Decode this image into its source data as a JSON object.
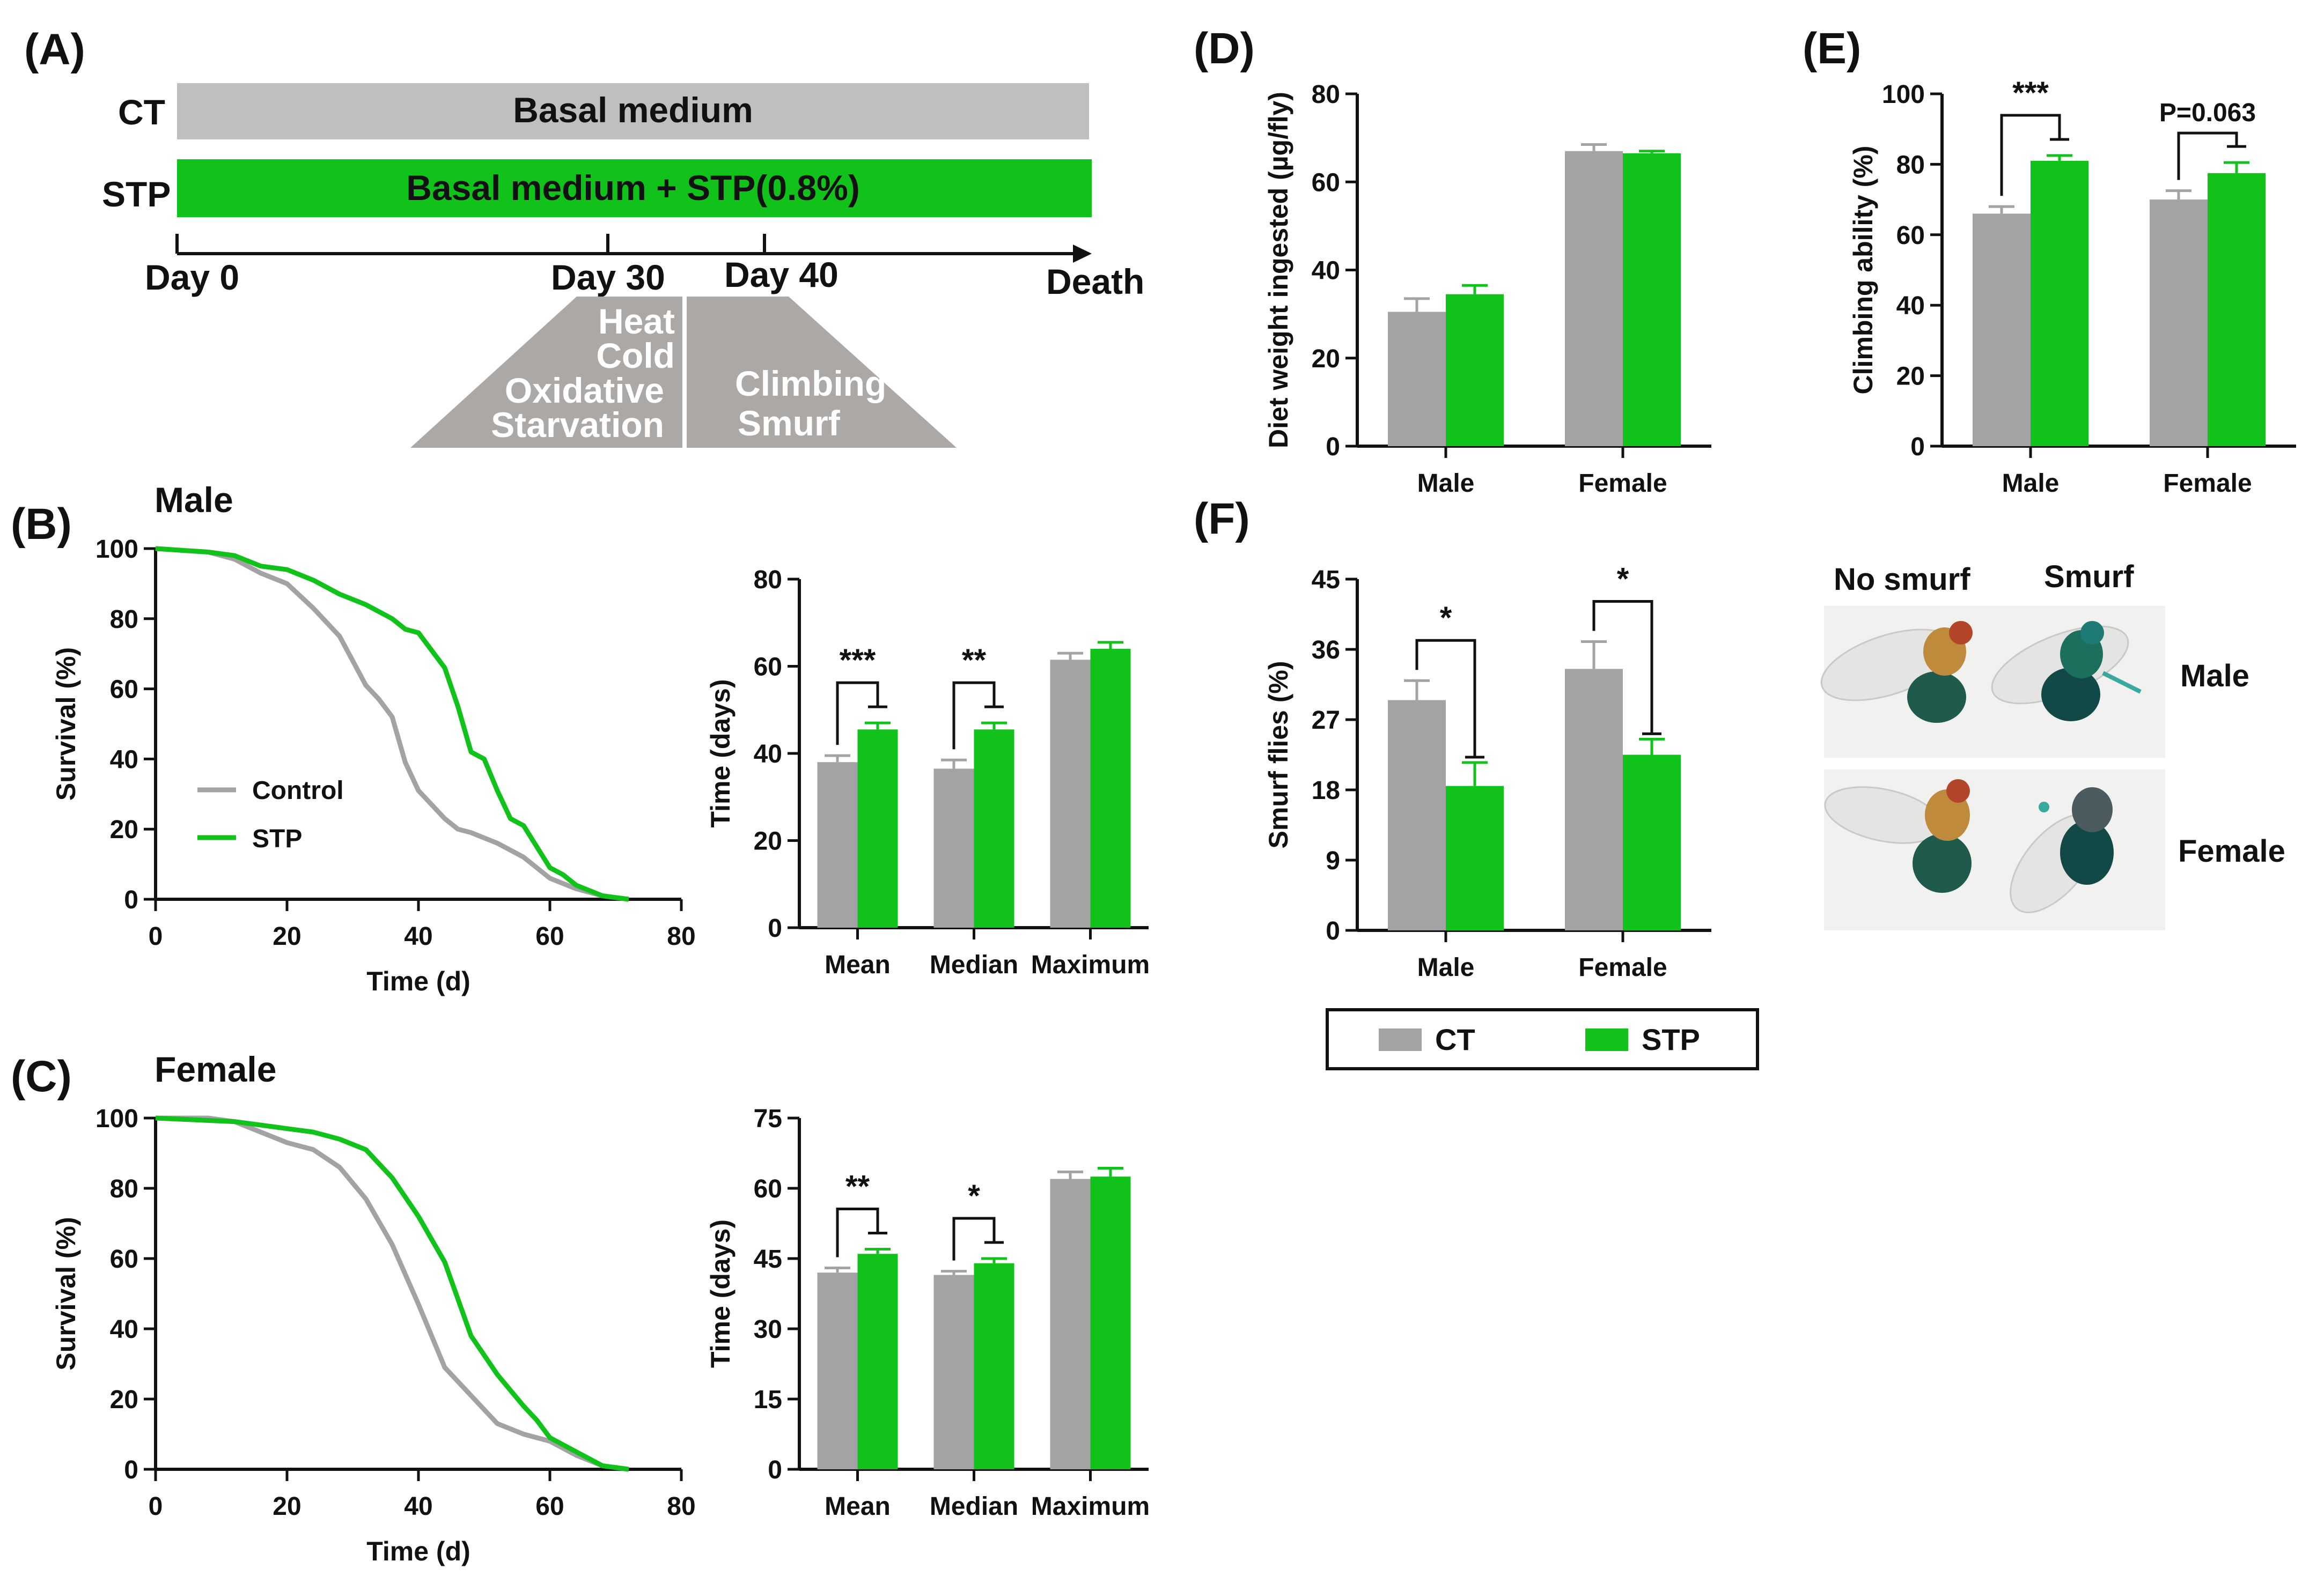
{
  "colors": {
    "ct": "#a3a3a6",
    "stp": "#10c21a",
    "ink": "#111111",
    "bar_grey": "#bfbfbf",
    "trap": "#aca8a5"
  },
  "panel_labels": {
    "A": "(A)",
    "B": "(B)",
    "C": "(C)",
    "D": "(D)",
    "E": "(E)",
    "F": "(F)"
  },
  "timeline": {
    "ct_label": "CT",
    "stp_label": "STP",
    "ct_bar": "Basal medium",
    "stp_bar": "Basal medium + STP(0.8%)",
    "day0": "Day 0",
    "day30": "Day 30",
    "day40": "Day 40",
    "death": "Death",
    "stress_tests": [
      "Heat",
      "Cold",
      "Oxidative",
      "Starvation"
    ],
    "behavior_tests": [
      "Climbing",
      "Smurf"
    ]
  },
  "titles": {
    "male": "Male",
    "female": "Female"
  },
  "survival_legend": {
    "control": "Control",
    "stp": "STP"
  },
  "shared_legend": {
    "ct": "CT",
    "stp": "STP"
  },
  "photos": {
    "no_smurf": "No smurf",
    "smurf": "Smurf",
    "male": "Male",
    "female": "Female",
    "icons": [
      "fly-photo-male",
      "fly-photo-female"
    ]
  },
  "chart_data": [
    {
      "id": "B_survival",
      "type": "line",
      "title": "Male",
      "xlabel": "Time (d)",
      "ylabel": "Survival (%)",
      "xlim": [
        0,
        80
      ],
      "ylim": [
        0,
        100
      ],
      "xticks": [
        0,
        20,
        40,
        60,
        80
      ],
      "yticks": [
        0,
        20,
        40,
        60,
        80,
        100
      ],
      "series": [
        {
          "name": "Control",
          "color": "ct",
          "x": [
            0,
            8,
            12,
            16,
            20,
            24,
            28,
            30,
            32,
            34,
            36,
            38,
            40,
            42,
            44,
            46,
            48,
            52,
            56,
            60,
            64,
            68,
            72
          ],
          "y": [
            100,
            99,
            97,
            93,
            90,
            83,
            75,
            68,
            61,
            57,
            52,
            39,
            31,
            27,
            23,
            20,
            19,
            16,
            12,
            6,
            3,
            1,
            0
          ]
        },
        {
          "name": "STP",
          "color": "stp",
          "x": [
            0,
            8,
            12,
            16,
            20,
            24,
            28,
            32,
            36,
            38,
            40,
            42,
            44,
            46,
            48,
            50,
            52,
            54,
            56,
            58,
            60,
            62,
            64,
            68,
            72
          ],
          "y": [
            100,
            99,
            98,
            95,
            94,
            91,
            87,
            84,
            80,
            77,
            76,
            71,
            66,
            55,
            42,
            40,
            31,
            23,
            21,
            15,
            9,
            7,
            4,
            1,
            0
          ]
        }
      ]
    },
    {
      "id": "B_bars",
      "type": "bar",
      "xlabel": "",
      "ylabel": "Time (days)",
      "ylim": [
        0,
        80
      ],
      "yticks": [
        0,
        20,
        40,
        60,
        80
      ],
      "categories": [
        "Mean",
        "Median",
        "Maximum"
      ],
      "series": [
        {
          "name": "CT",
          "color": "ct",
          "values": [
            38,
            36.5,
            61.5
          ],
          "errors": [
            1.5,
            2,
            1.5
          ]
        },
        {
          "name": "STP",
          "color": "stp",
          "values": [
            45.5,
            45.5,
            64
          ],
          "errors": [
            1.5,
            1.5,
            1.5
          ]
        }
      ],
      "significance": [
        {
          "category": 0,
          "label": "***"
        },
        {
          "category": 1,
          "label": "**"
        }
      ]
    },
    {
      "id": "C_survival",
      "type": "line",
      "title": "Female",
      "xlabel": "Time (d)",
      "ylabel": "Survival (%)",
      "xlim": [
        0,
        80
      ],
      "ylim": [
        0,
        100
      ],
      "xticks": [
        0,
        20,
        40,
        60,
        80
      ],
      "yticks": [
        0,
        20,
        40,
        60,
        80,
        100
      ],
      "series": [
        {
          "name": "Control",
          "color": "ct",
          "x": [
            0,
            8,
            12,
            16,
            20,
            24,
            28,
            32,
            36,
            40,
            44,
            48,
            52,
            56,
            60,
            64,
            68,
            72
          ],
          "y": [
            100,
            100,
            99,
            96,
            93,
            91,
            86,
            77,
            64,
            47,
            29,
            21,
            13,
            10,
            8,
            4,
            1,
            0
          ]
        },
        {
          "name": "STP",
          "color": "stp",
          "x": [
            0,
            12,
            16,
            20,
            24,
            28,
            32,
            34,
            36,
            40,
            44,
            48,
            52,
            56,
            58,
            60,
            64,
            68,
            72
          ],
          "y": [
            100,
            99,
            98,
            97,
            96,
            94,
            91,
            87,
            83,
            72,
            59,
            38,
            27,
            18,
            14,
            9,
            5,
            1,
            0
          ]
        }
      ]
    },
    {
      "id": "C_bars",
      "type": "bar",
      "xlabel": "",
      "ylabel": "Time (days)",
      "ylim": [
        0,
        75
      ],
      "yticks": [
        0,
        15,
        30,
        45,
        60,
        75
      ],
      "categories": [
        "Mean",
        "Median",
        "Maximum"
      ],
      "series": [
        {
          "name": "CT",
          "color": "ct",
          "values": [
            42,
            41.5,
            62
          ],
          "errors": [
            1,
            0.8,
            1.5
          ]
        },
        {
          "name": "STP",
          "color": "stp",
          "values": [
            46,
            44,
            62.5
          ],
          "errors": [
            1,
            1,
            1.8
          ]
        }
      ],
      "significance": [
        {
          "category": 0,
          "label": "**"
        },
        {
          "category": 1,
          "label": "*"
        }
      ]
    },
    {
      "id": "D_bars",
      "type": "bar",
      "xlabel": "",
      "ylabel": "Diet weight ingested (µg/fly)",
      "ylim": [
        0,
        80
      ],
      "yticks": [
        0,
        20,
        40,
        60,
        80
      ],
      "categories": [
        "Male",
        "Female"
      ],
      "series": [
        {
          "name": "CT",
          "color": "ct",
          "values": [
            30.5,
            67
          ],
          "errors": [
            3,
            1.5
          ]
        },
        {
          "name": "STP",
          "color": "stp",
          "values": [
            34.5,
            66.5
          ],
          "errors": [
            2,
            0.5
          ]
        }
      ],
      "significance": []
    },
    {
      "id": "E_bars",
      "type": "bar",
      "xlabel": "",
      "ylabel": "Climbing ability (%)",
      "ylim": [
        0,
        100
      ],
      "yticks": [
        0,
        20,
        40,
        60,
        80,
        100
      ],
      "categories": [
        "Male",
        "Female"
      ],
      "series": [
        {
          "name": "CT",
          "color": "ct",
          "values": [
            66,
            70
          ],
          "errors": [
            2,
            2.5
          ]
        },
        {
          "name": "STP",
          "color": "stp",
          "values": [
            81,
            77.5
          ],
          "errors": [
            1.5,
            3
          ]
        }
      ],
      "significance": [
        {
          "category": 0,
          "label": "***"
        },
        {
          "category": 1,
          "label": "P=0.063"
        }
      ]
    },
    {
      "id": "F_bars",
      "type": "bar",
      "xlabel": "",
      "ylabel": "Smurf flies (%)",
      "ylim": [
        0,
        45
      ],
      "yticks": [
        0,
        9,
        18,
        27,
        36,
        45
      ],
      "categories": [
        "Male",
        "Female"
      ],
      "series": [
        {
          "name": "CT",
          "color": "ct",
          "values": [
            29.5,
            33.5
          ],
          "errors": [
            2.5,
            3.5
          ]
        },
        {
          "name": "STP",
          "color": "stp",
          "values": [
            18.5,
            22.5
          ],
          "errors": [
            3,
            2
          ]
        }
      ],
      "significance": [
        {
          "category": 0,
          "label": "*"
        },
        {
          "category": 1,
          "label": "*"
        }
      ]
    }
  ]
}
